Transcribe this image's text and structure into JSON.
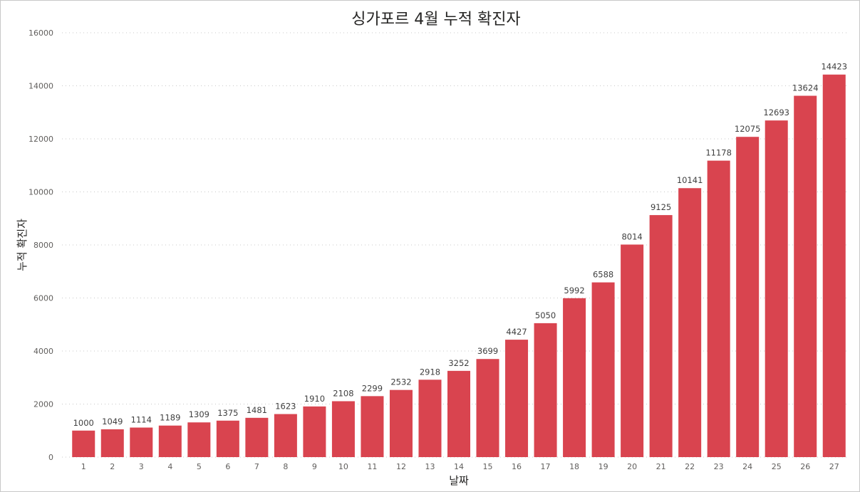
{
  "chart_data": {
    "type": "bar",
    "title": "싱가포르 4월 누적 확진자",
    "xlabel": "날짜",
    "ylabel": "누적 확진자",
    "ylim": [
      0,
      16000
    ],
    "yticks": [
      0,
      2000,
      4000,
      6000,
      8000,
      10000,
      12000,
      14000,
      16000
    ],
    "grid": true,
    "legend": "none",
    "bar_color": "#d9444f",
    "categories": [
      "1",
      "2",
      "3",
      "4",
      "5",
      "6",
      "7",
      "8",
      "9",
      "10",
      "11",
      "12",
      "13",
      "14",
      "15",
      "16",
      "17",
      "18",
      "19",
      "20",
      "21",
      "22",
      "23",
      "24",
      "25",
      "26",
      "27"
    ],
    "series": [
      {
        "values": [
          1000,
          1049,
          1114,
          1189,
          1309,
          1375,
          1481,
          1623,
          1910,
          2108,
          2299,
          2532,
          2918,
          3252,
          3699,
          4427,
          5050,
          5992,
          6588,
          8014,
          9125,
          10141,
          11178,
          12075,
          12693,
          13624,
          14423
        ]
      }
    ]
  }
}
